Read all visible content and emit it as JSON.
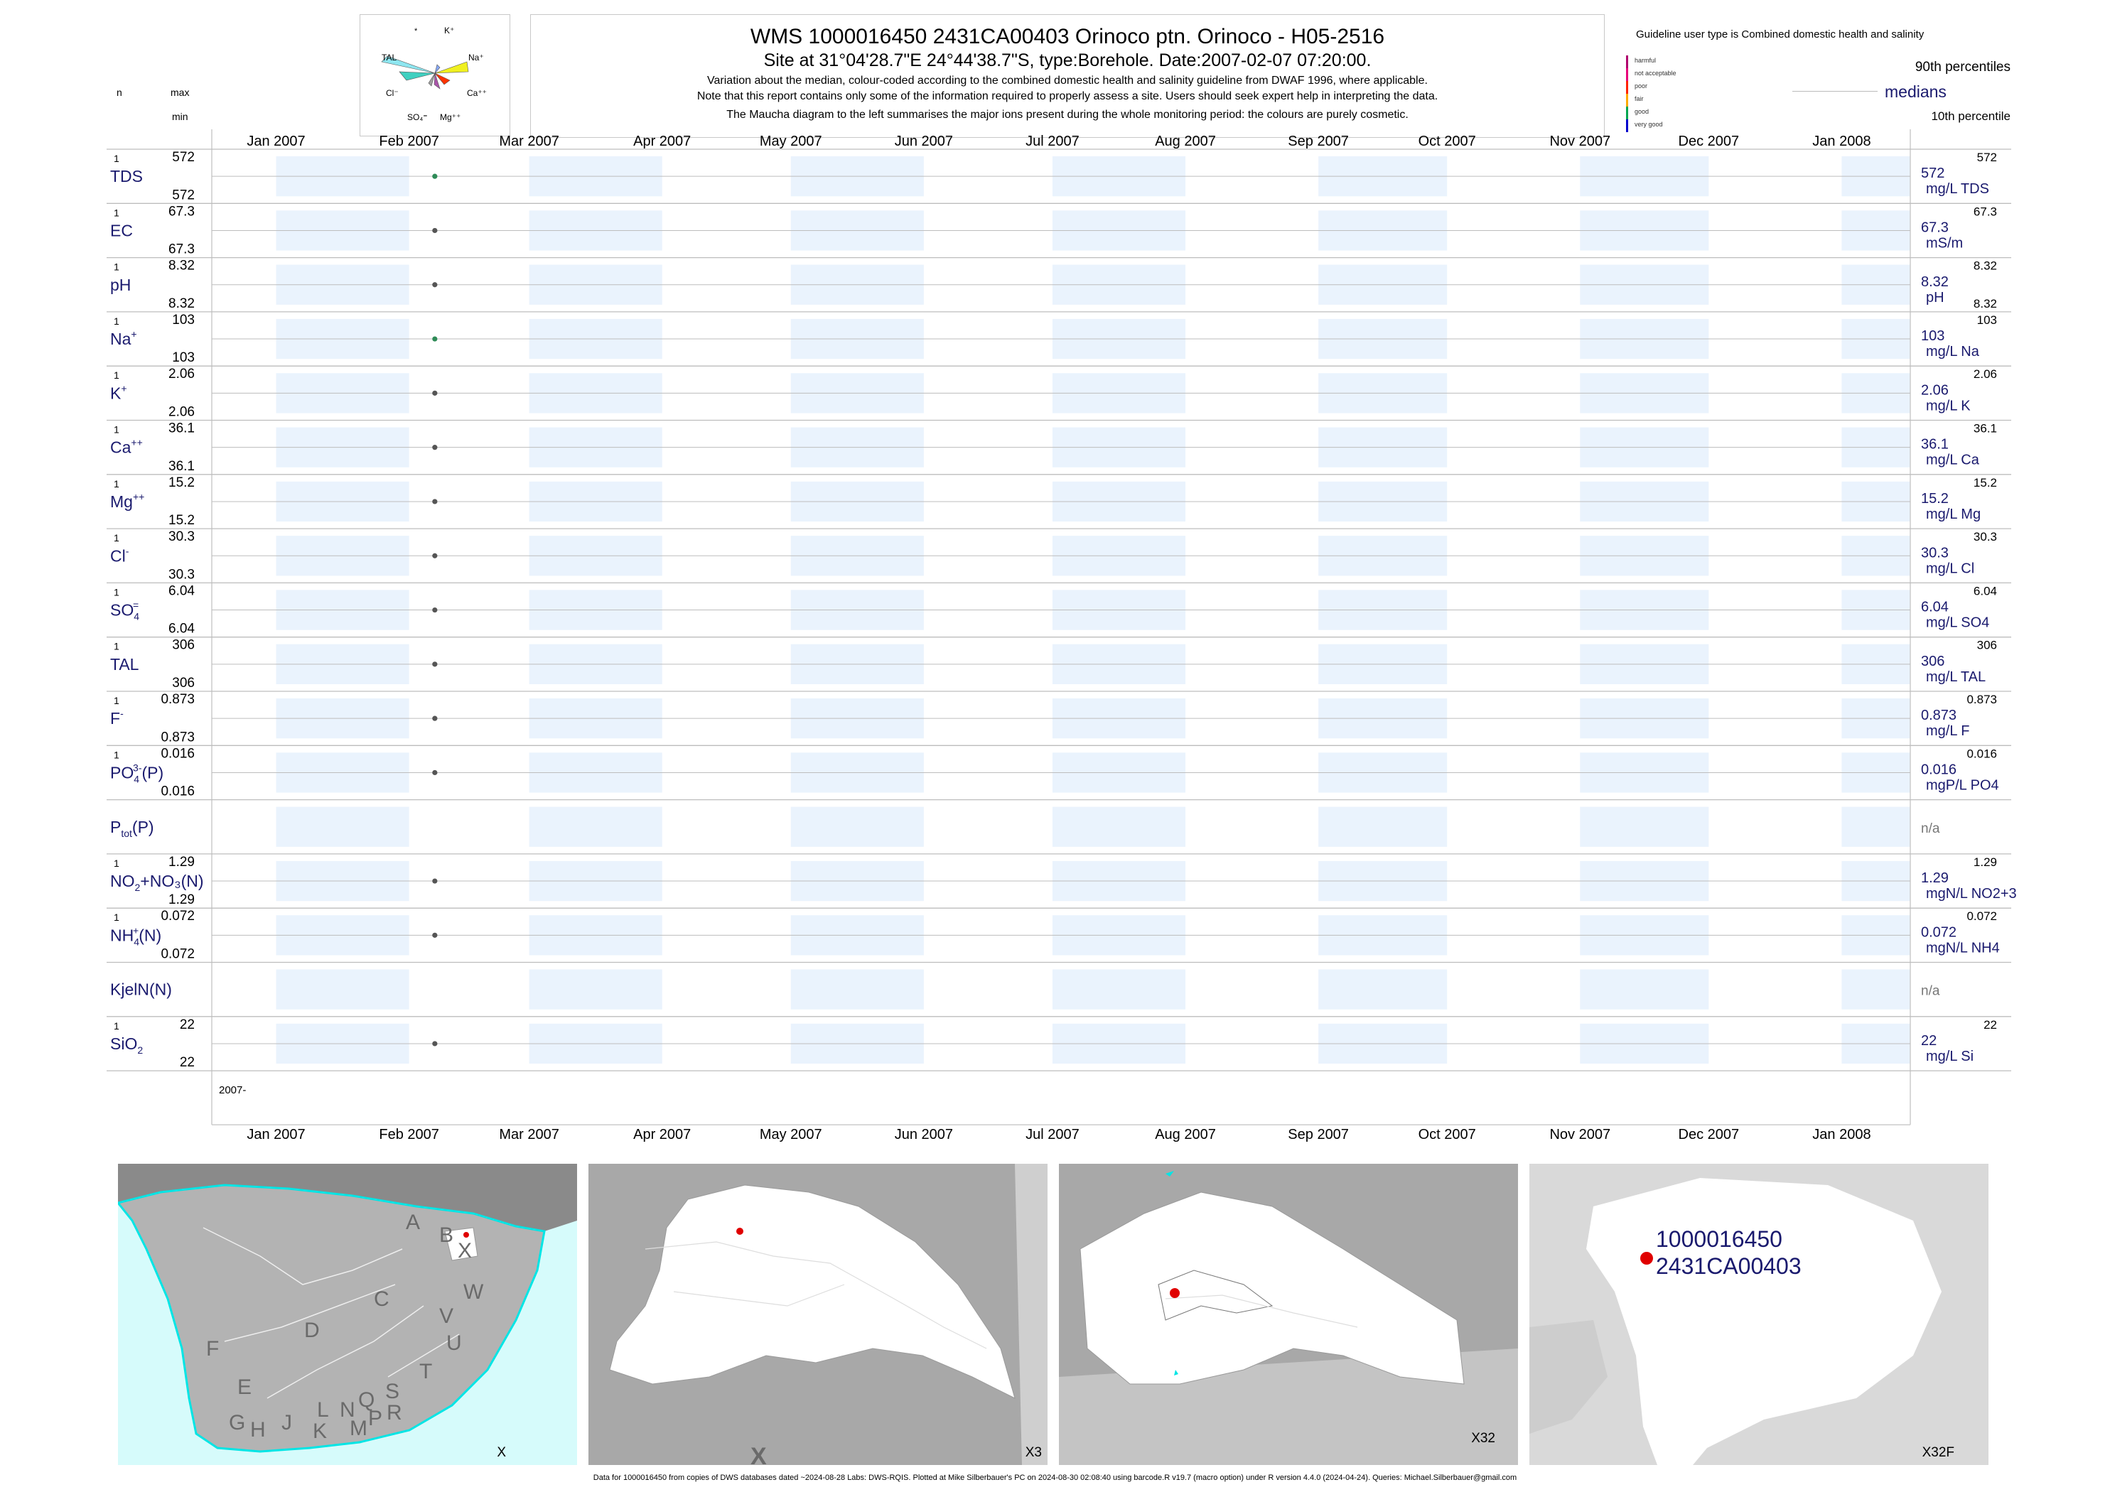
{
  "header": {
    "title": "WMS 1000016450 2431CA00403 Orinoco ptn. Orinoco - H05-2516",
    "subtitle": "Site at 31°04'28.7\"E 24°44'38.7\"S, type:Borehole. Date:2007-02-07 07:20:00.",
    "notes": [
      "Variation about the median,  colour-coded according to the combined domestic health and salinity guideline from DWAF 1996, where applicable.",
      "Note that this report contains only some of the information required to properly assess a site. Users should seek expert help in interpreting the data.",
      "The Maucha diagram to the left summarises the major ions present during the whole monitoring period: the colours are purely cosmetic."
    ]
  },
  "col_headers": {
    "n": "n",
    "max": "max",
    "min": "min"
  },
  "maucha": {
    "labels": [
      "*",
      "K⁺",
      "TAL",
      "Na⁺",
      "Cl⁻",
      "Ca⁺⁺",
      "SO₄⁼",
      "Mg⁺⁺"
    ]
  },
  "guideline": {
    "title": "Guideline user type is Combined domestic health and salinity",
    "levels": [
      "harmful",
      "not acceptable",
      "poor",
      "fair",
      "good",
      "very good"
    ],
    "colors": [
      "#b0006e",
      "#e8007a",
      "#ff2200",
      "#ffaa00",
      "#00a650",
      "#0000cc"
    ],
    "p90": "90th percentiles",
    "medians": "medians",
    "p10": "10th percentile"
  },
  "chart_data": {
    "type": "scatter",
    "x_axis": {
      "months": [
        "Jan 2007",
        "Feb 2007",
        "Mar 2007",
        "Apr 2007",
        "May 2007",
        "Jun 2007",
        "Jul 2007",
        "Aug 2007",
        "Sep 2007",
        "Oct 2007",
        "Nov 2007",
        "Dec 2007",
        "Jan 2008"
      ],
      "range": [
        "2006-12-17",
        "2008-01-17"
      ],
      "year_label": "2007-"
    },
    "sample_date": "2007-02-07",
    "rows": [
      {
        "label": "TDS",
        "sup": "",
        "sub": "",
        "after": "",
        "n": "1",
        "max": "572",
        "min": "572",
        "median": "572",
        "unit": "mg/L TDS",
        "p90": "572",
        "p10": "",
        "color": "#2e8b57"
      },
      {
        "label": "EC",
        "sup": "",
        "sub": "",
        "after": "",
        "n": "1",
        "max": "67.3",
        "min": "67.3",
        "median": "67.3",
        "unit": "mS/m",
        "p90": "67.3",
        "p10": "",
        "color": "#555555"
      },
      {
        "label": "pH",
        "sup": "",
        "sub": "",
        "after": "",
        "n": "1",
        "max": "8.32",
        "min": "8.32",
        "median": "8.32",
        "unit": "pH",
        "p90": "8.32",
        "p10": "8.32",
        "color": "#555555"
      },
      {
        "label": "Na",
        "sup": "+",
        "sub": "",
        "after": "",
        "n": "1",
        "max": "103",
        "min": "103",
        "median": "103",
        "unit": "mg/L Na",
        "p90": "103",
        "p10": "",
        "color": "#2e8b57"
      },
      {
        "label": "K",
        "sup": "+",
        "sub": "",
        "after": "",
        "n": "1",
        "max": "2.06",
        "min": "2.06",
        "median": "2.06",
        "unit": "mg/L K",
        "p90": "2.06",
        "p10": "",
        "color": "#555555"
      },
      {
        "label": "Ca",
        "sup": "++",
        "sub": "",
        "after": "",
        "n": "1",
        "max": "36.1",
        "min": "36.1",
        "median": "36.1",
        "unit": "mg/L Ca",
        "p90": "36.1",
        "p10": "",
        "color": "#555555"
      },
      {
        "label": "Mg",
        "sup": "++",
        "sub": "",
        "after": "",
        "n": "1",
        "max": "15.2",
        "min": "15.2",
        "median": "15.2",
        "unit": "mg/L Mg",
        "p90": "15.2",
        "p10": "",
        "color": "#555555"
      },
      {
        "label": "Cl",
        "sup": "-",
        "sub": "",
        "after": "",
        "n": "1",
        "max": "30.3",
        "min": "30.3",
        "median": "30.3",
        "unit": "mg/L Cl",
        "p90": "30.3",
        "p10": "",
        "color": "#555555"
      },
      {
        "label": "SO",
        "sup": "=",
        "sub": "4",
        "after": "",
        "n": "1",
        "max": "6.04",
        "min": "6.04",
        "median": "6.04",
        "unit": "mg/L SO4",
        "p90": "6.04",
        "p10": "",
        "color": "#555555"
      },
      {
        "label": "TAL",
        "sup": "",
        "sub": "",
        "after": "",
        "n": "1",
        "max": "306",
        "min": "306",
        "median": "306",
        "unit": "mg/L TAL",
        "p90": "306",
        "p10": "",
        "color": "#555555"
      },
      {
        "label": "F",
        "sup": "-",
        "sub": "",
        "after": "",
        "n": "1",
        "max": "0.873",
        "min": "0.873",
        "median": "0.873",
        "unit": "mg/L F",
        "p90": "0.873",
        "p10": "",
        "color": "#555555"
      },
      {
        "label": "PO",
        "sup": "3-",
        "sub": "4",
        "after": "(P)",
        "n": "1",
        "max": "0.016",
        "min": "0.016",
        "median": "0.016",
        "unit": "mgP/L PO4",
        "p90": "0.016",
        "p10": "",
        "color": "#555555"
      },
      {
        "label": "P",
        "sup": "",
        "sub": "tot",
        "after": "(P)",
        "n": "",
        "max": "",
        "min": "",
        "median": "n/a",
        "unit": "",
        "p90": "",
        "p10": "",
        "color": ""
      },
      {
        "label": "NO",
        "sup": "",
        "sub": "2",
        "after": "+NO₃(N)",
        "n": "1",
        "max": "1.29",
        "min": "1.29",
        "median": "1.29",
        "unit": "mgN/L NO2+3",
        "p90": "1.29",
        "p10": "",
        "color": "#555555"
      },
      {
        "label": "NH",
        "sup": "+",
        "sub": "4",
        "after": "(N)",
        "n": "1",
        "max": "0.072",
        "min": "0.072",
        "median": "0.072",
        "unit": "mgN/L NH4",
        "p90": "0.072",
        "p10": "",
        "color": "#555555"
      },
      {
        "label": "KjelN(N)",
        "sup": "",
        "sub": "",
        "after": "",
        "n": "",
        "max": "",
        "min": "",
        "median": "n/a",
        "unit": "",
        "p90": "",
        "p10": "",
        "color": ""
      },
      {
        "label": "SiO",
        "sup": "",
        "sub": "2",
        "after": "",
        "n": "1",
        "max": "22",
        "min": "22",
        "median": "22",
        "unit": "mg/L Si",
        "p90": "22",
        "p10": "",
        "color": "#555555"
      }
    ]
  },
  "maps": {
    "panel1": {
      "letters": [
        "A",
        "B",
        "X",
        "C",
        "W",
        "D",
        "V",
        "U",
        "F",
        "T",
        "E",
        "S",
        "L",
        "N",
        "Q",
        "R",
        "P",
        "G",
        "H",
        "J",
        "K",
        "M"
      ],
      "corner": "X"
    },
    "panel2": {
      "corner": "X3",
      "marker": "X"
    },
    "panel3": {
      "corner": "X32"
    },
    "panel4": {
      "corner": "X32F",
      "site_id": "1000016450",
      "site_code": "2431CA00403"
    }
  },
  "footer": "Data for 1000016450 from copies of DWS databases dated ~2024-08-28 Labs: DWS-RQIS. Plotted at Mike Silberbauer's PC on 2024-08-30 02:08:40 using barcode.R v19.7 (macro option) under R version 4.4.0 (2024-04-24). Queries: Michael.Silberbauer@gmail.com"
}
